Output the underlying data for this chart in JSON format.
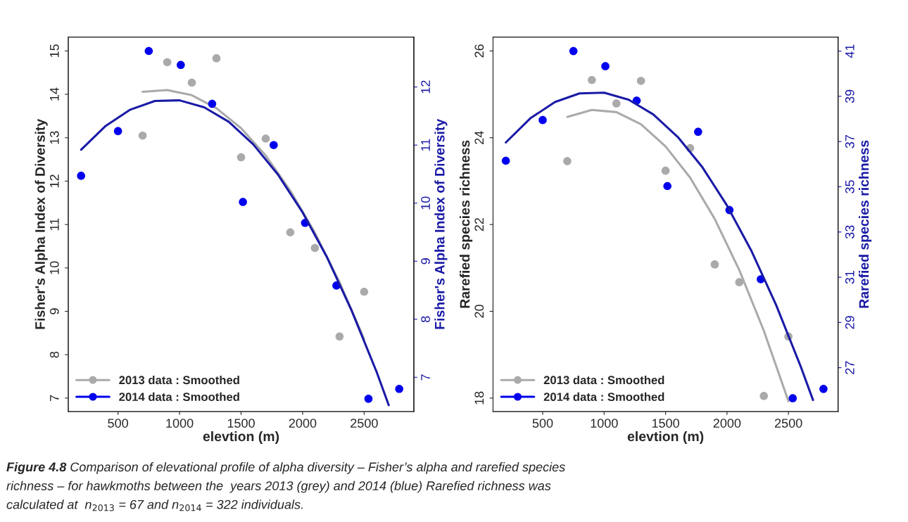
{
  "chart_data": [
    {
      "type": "scatter",
      "xlabel": "elevtion (m)",
      "ylabel": "Fisher's Alpha Index of Diversity",
      "y2label": "Fisher's Alpha Index of Diversity",
      "xlim": [
        96,
        2904
      ],
      "xticks": [
        500,
        1000,
        1500,
        2000,
        2500
      ],
      "ylim": [
        6.69,
        15.32
      ],
      "yticks": [
        7,
        8,
        9,
        10,
        11,
        12,
        13,
        14,
        15
      ],
      "y2lim": [
        6.41,
        12.86
      ],
      "y2ticks": [
        7,
        8,
        9,
        10,
        11,
        12
      ],
      "legend": "bottom left",
      "grid": false,
      "annotations": [
        "Figure 4.8",
        "Comparison of elevational profile of alpha diversity – Fisher’s alpha and rarefied species",
        "richness – for hawkmoths between the  years 2013 (grey) and 2014 (blue) Rarefied richness was",
        "calculated at  n$_{2013}$ = 67 and n$_{2014}$ = 322 individuals."
      ],
      "series": [
        {
          "name": "2013 data : Smoothed",
          "marker": "circle",
          "color": "#aaaaaa",
          "x": [
            700,
            900,
            1100,
            1300,
            1500,
            1700,
            1900,
            2100,
            2300,
            2500
          ],
          "values": [
            13.05,
            14.74,
            14.27,
            14.83,
            12.55,
            12.98,
            10.82,
            10.46,
            8.42,
            9.45
          ]
        },
        {
          "type": "line",
          "color": "#aaaaaa",
          "x": [
            700,
            900,
            1100,
            1300,
            1500,
            1700,
            1900,
            2100,
            2300,
            2500
          ],
          "values": [
            14.06,
            14.1,
            13.98,
            13.68,
            13.22,
            12.59,
            11.78,
            10.81,
            9.67,
            8.36
          ]
        },
        {
          "name": "2014 data : Smoothed",
          "marker": "circle",
          "axis": "y2",
          "color": "#0000ee",
          "x": [
            200,
            500,
            750,
            1010,
            1265,
            1515,
            1765,
            2020,
            2275,
            2535,
            2785
          ],
          "values": [
            10.47,
            11.24,
            12.62,
            12.38,
            11.71,
            10.02,
            11.0,
            9.66,
            8.58,
            6.63,
            6.8
          ]
        },
        {
          "type": "line",
          "axis": "y2",
          "color": "#1a1aa6",
          "x": [
            200,
            400,
            600,
            800,
            1000,
            1200,
            1400,
            1600,
            1800,
            2000,
            2200,
            2400,
            2600,
            2700
          ],
          "values": [
            10.92,
            11.33,
            11.61,
            11.76,
            11.77,
            11.65,
            11.4,
            11.01,
            10.49,
            9.84,
            9.06,
            8.14,
            7.1,
            6.52
          ]
        }
      ]
    },
    {
      "type": "scatter",
      "xlabel": "elevtion (m)",
      "ylabel": "Rarefied species richness",
      "y2label": "Rarefied species richness",
      "xlim": [
        96,
        2904
      ],
      "xticks": [
        500,
        1000,
        1500,
        2000,
        2500
      ],
      "ylim": [
        17.69,
        26.32
      ],
      "yticks": [
        18,
        20,
        22,
        24,
        26
      ],
      "y2lim": [
        25.06,
        41.62
      ],
      "y2ticks": [
        27,
        29,
        31,
        33,
        35,
        37,
        39,
        41
      ],
      "legend": "bottom left",
      "grid": false,
      "series": [
        {
          "name": "2013 data : Smoothed",
          "marker": "circle",
          "color": "#aaaaaa",
          "x": [
            700,
            900,
            1100,
            1300,
            1500,
            1700,
            1900,
            2100,
            2300,
            2500
          ],
          "values": [
            23.46,
            25.33,
            24.79,
            25.31,
            23.24,
            23.76,
            21.08,
            20.67,
            18.05,
            19.42
          ]
        },
        {
          "type": "line",
          "color": "#aaaaaa",
          "x": [
            700,
            900,
            1100,
            1300,
            1500,
            1700,
            1900,
            2100,
            2300,
            2500
          ],
          "values": [
            24.48,
            24.64,
            24.59,
            24.31,
            23.8,
            23.08,
            22.13,
            20.95,
            19.55,
            17.93
          ]
        },
        {
          "name": "2014 data : Smoothed",
          "marker": "circle",
          "axis": "y2",
          "color": "#0000ee",
          "x": [
            200,
            500,
            750,
            1010,
            1265,
            1515,
            1765,
            2020,
            2275,
            2535,
            2785
          ],
          "values": [
            36.15,
            37.95,
            41.0,
            40.33,
            38.81,
            35.03,
            37.43,
            33.97,
            30.91,
            25.65,
            26.06
          ]
        },
        {
          "type": "line",
          "axis": "y2",
          "color": "#1a1aa6",
          "x": [
            200,
            400,
            600,
            800,
            1000,
            1200,
            1400,
            1600,
            1800,
            2000,
            2200,
            2400,
            2600,
            2700
          ],
          "values": [
            36.96,
            38.03,
            38.75,
            39.13,
            39.16,
            38.85,
            38.2,
            37.2,
            35.86,
            34.17,
            32.15,
            29.77,
            27.05,
            25.57
          ]
        }
      ]
    }
  ]
}
